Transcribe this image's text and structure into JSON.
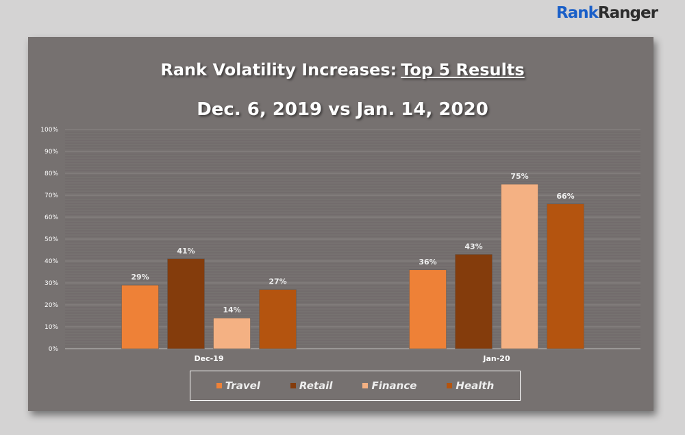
{
  "logo": {
    "part1": "Rank",
    "part2": "Ranger"
  },
  "chart_data": {
    "type": "bar",
    "title": "Rank Volatility Increases:",
    "title_underlined": "Top 5 Results",
    "subtitle": "Dec. 6, 2019 vs Jan. 14, 2020",
    "categories": [
      "Dec-19",
      "Jan-20"
    ],
    "series": [
      {
        "name": "Travel",
        "color": "#ee8137",
        "values": [
          29,
          36
        ]
      },
      {
        "name": "Retail",
        "color": "#843c0c",
        "values": [
          41,
          43
        ]
      },
      {
        "name": "Finance",
        "color": "#f4b183",
        "values": [
          14,
          75
        ]
      },
      {
        "name": "Health",
        "color": "#b4540f",
        "values": [
          27,
          66
        ]
      }
    ],
    "ylim": [
      0,
      100
    ],
    "yticks": [
      "0%",
      "10%",
      "20%",
      "30%",
      "40%",
      "50%",
      "60%",
      "70%",
      "80%",
      "90%",
      "100%"
    ],
    "data_label_suffix": "%",
    "legend_position": "bottom",
    "grid": true
  }
}
